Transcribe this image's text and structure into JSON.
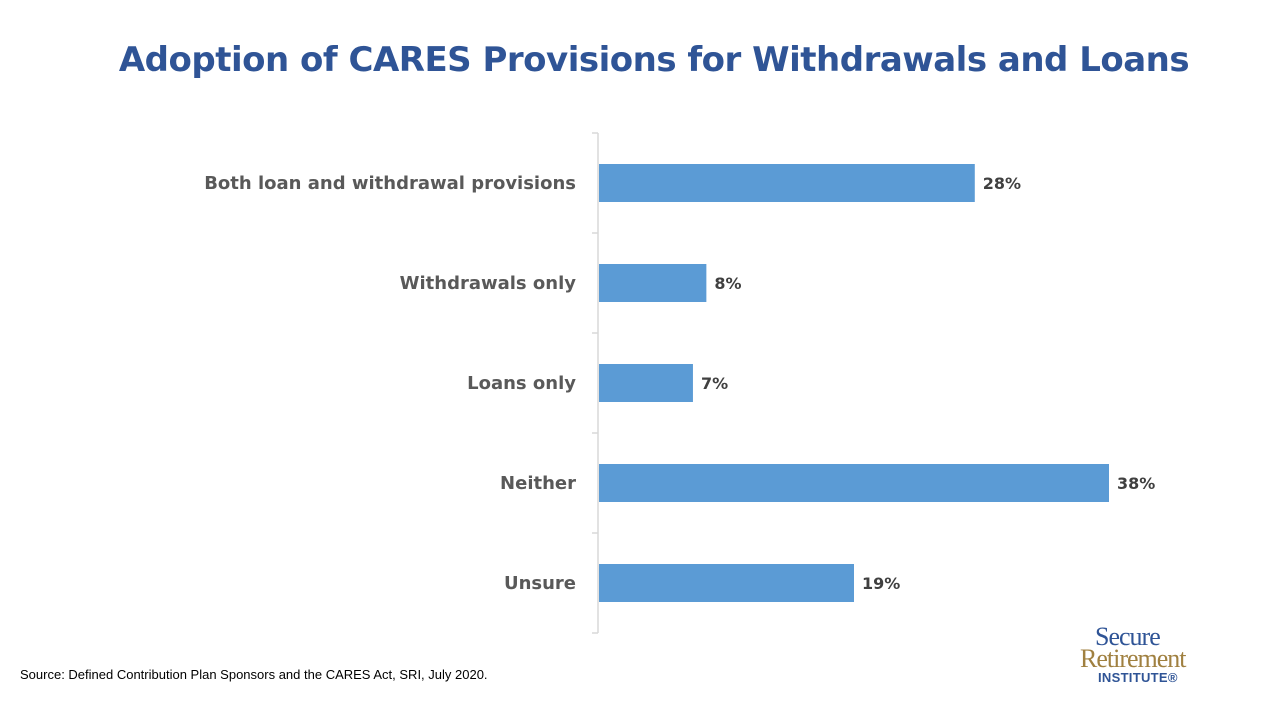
{
  "chart_data": {
    "type": "bar",
    "orientation": "horizontal",
    "title": "Adoption of CARES Provisions for Withdrawals and Loans",
    "categories": [
      "Both loan and withdrawal provisions",
      "Withdrawals only",
      "Loans only",
      "Neither",
      "Unsure"
    ],
    "values": [
      28,
      8,
      7,
      38,
      19
    ],
    "value_labels": [
      "28%",
      "8%",
      "7%",
      "38%",
      "19%"
    ],
    "unit": "%",
    "xlim": [
      0,
      38
    ],
    "grid": false,
    "legend": "none",
    "bar_color": "#5b9bd5"
  },
  "source": "Source: Defined Contribution Plan Sponsors and the CARES Act, SRI, July 2020.",
  "logo": {
    "line1": "Secure",
    "line2": "Retirement",
    "line3": "INSTITUTE®"
  },
  "colors": {
    "title": "#2f5496",
    "axis": "#d9d9d9",
    "category_text": "#595959",
    "value_text": "#404040"
  }
}
